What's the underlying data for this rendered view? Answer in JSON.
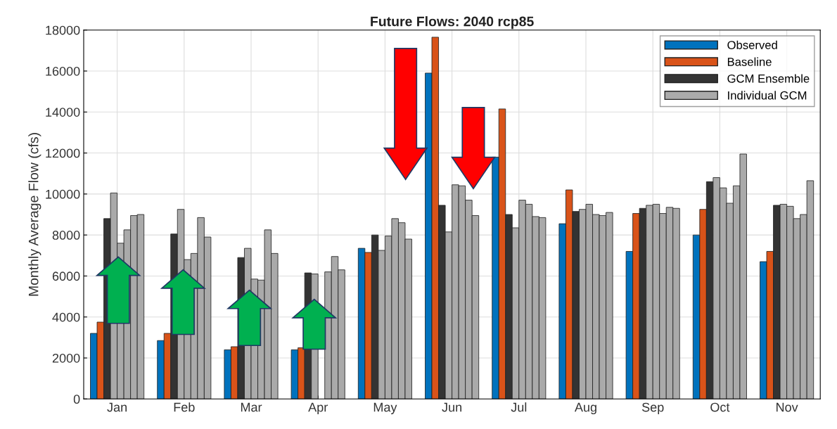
{
  "chart_data": {
    "type": "bar",
    "title": "Future Flows: 2040 rcp85",
    "ylabel": "Monthly Average Flow (cfs)",
    "categories": [
      "Jan",
      "Feb",
      "Mar",
      "Apr",
      "May",
      "Jun",
      "Jul",
      "Aug",
      "Sep",
      "Oct",
      "Nov"
    ],
    "series": [
      {
        "name": "Observed",
        "color": "#0072bd",
        "values": [
          3200,
          2850,
          2400,
          2400,
          7350,
          15900,
          11800,
          8550,
          7200,
          8000,
          6700
        ]
      },
      {
        "name": "Baseline",
        "color": "#d95319",
        "values": [
          3750,
          3200,
          2550,
          2500,
          7150,
          17650,
          14150,
          10200,
          9050,
          9250,
          7200
        ]
      },
      {
        "name": "GCM Ensemble",
        "color": "#333333",
        "values": [
          8800,
          8050,
          6900,
          6150,
          8000,
          9450,
          9000,
          9150,
          9300,
          10600,
          9450
        ]
      },
      {
        "name": "Individual GCM",
        "color": "#aaaaaa",
        "values": [
          10050,
          9250,
          7350,
          6100,
          7250,
          8150,
          8350,
          9250,
          9450,
          10800,
          9500
        ]
      },
      {
        "color": "#aaaaaa",
        "values": [
          7600,
          6800,
          5850,
          null,
          7950,
          10450,
          9700,
          9500,
          9500,
          10300,
          9400
        ]
      },
      {
        "color": "#aaaaaa",
        "values": [
          8250,
          7100,
          5800,
          6200,
          8800,
          10400,
          9500,
          9000,
          9050,
          9550,
          8800
        ]
      },
      {
        "color": "#aaaaaa",
        "values": [
          8950,
          8850,
          8250,
          6950,
          8600,
          9700,
          8900,
          8950,
          9350,
          10400,
          9000
        ]
      },
      {
        "color": "#aaaaaa",
        "values": [
          9000,
          7900,
          7100,
          6300,
          7800,
          8950,
          8850,
          9100,
          9300,
          11950,
          10650
        ]
      }
    ],
    "ylim": [
      0,
      18000
    ],
    "yticks": [
      0,
      2000,
      4000,
      6000,
      8000,
      10000,
      12000,
      14000,
      16000,
      18000
    ],
    "grid": true,
    "legend": "top right"
  }
}
